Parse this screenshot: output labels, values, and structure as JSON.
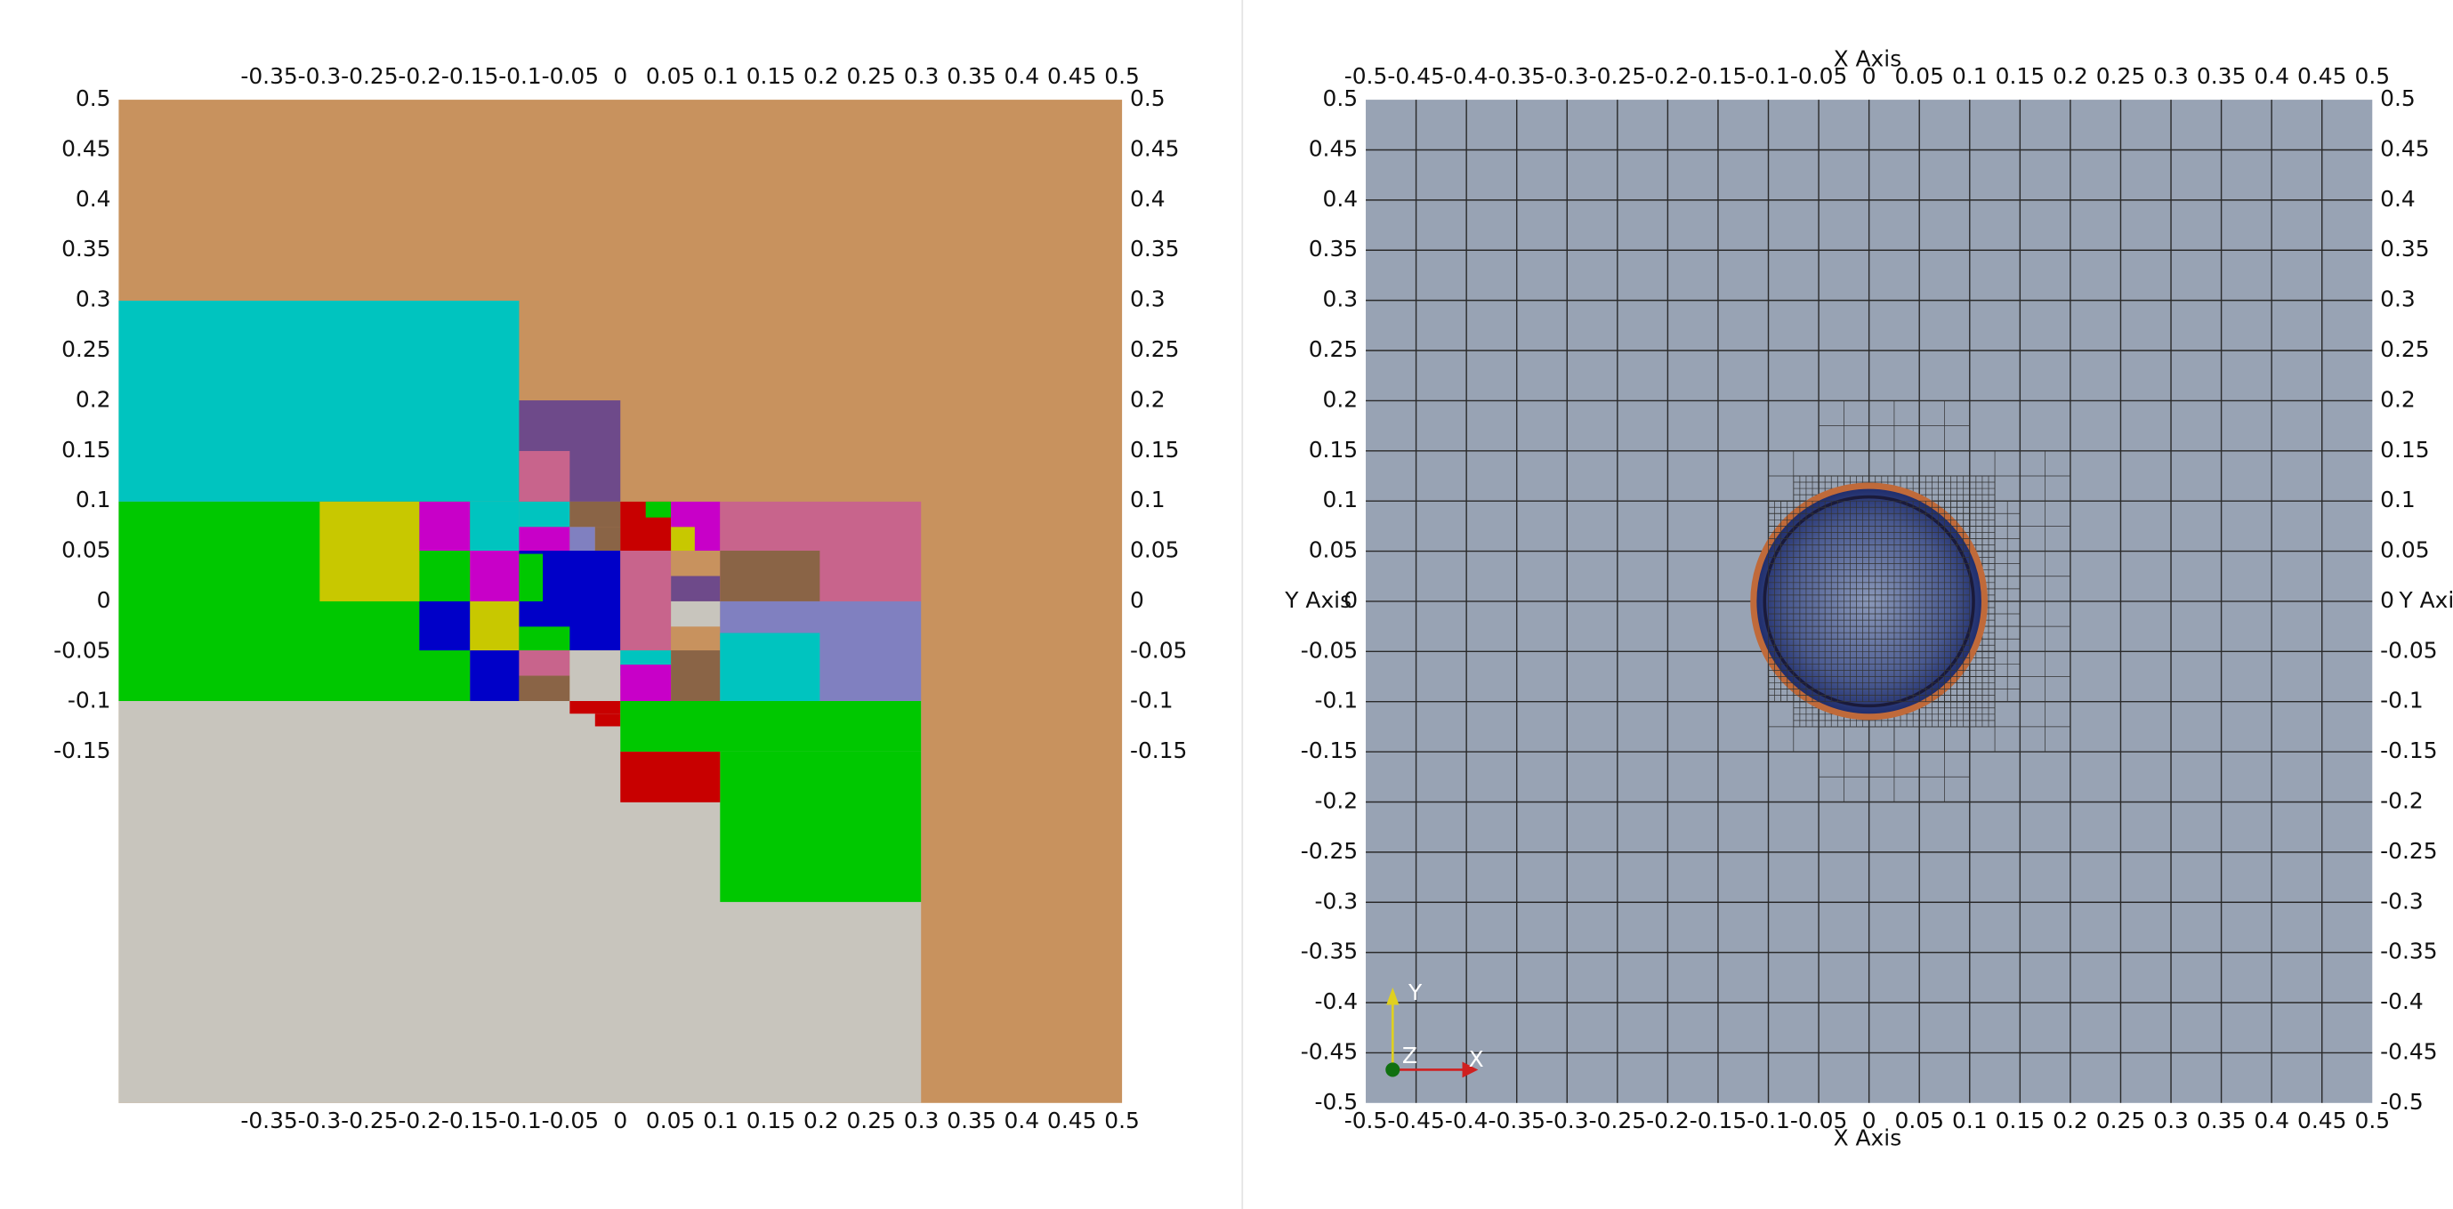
{
  "left_view": {
    "x_tick_labels": [
      -0.35,
      -0.3,
      -0.25,
      -0.2,
      -0.15,
      -0.1,
      -0.05,
      0,
      0.05,
      0.1,
      0.15,
      0.2,
      0.25,
      0.3,
      0.35,
      0.4,
      0.45,
      0.5
    ],
    "y_tick_labels": [
      0.5,
      0.45,
      0.4,
      0.35,
      0.3,
      0.25,
      0.2,
      0.15,
      0.1,
      0.05,
      0,
      -0.05,
      -0.1,
      -0.15
    ]
  },
  "right_view": {
    "x_axis_title": "X Axis",
    "y_axis_title": "Y Axis",
    "x_tick_labels": [
      -0.5,
      -0.45,
      -0.4,
      -0.35,
      -0.3,
      -0.25,
      -0.2,
      -0.15,
      -0.1,
      -0.05,
      0,
      0.05,
      0.1,
      0.15,
      0.2,
      0.25,
      0.3,
      0.35,
      0.4,
      0.45,
      0.5
    ],
    "y_tick_labels": [
      0.5,
      0.45,
      0.4,
      0.35,
      0.3,
      0.25,
      0.2,
      0.15,
      0.1,
      0.05,
      0,
      -0.05,
      -0.1,
      -0.15,
      -0.2,
      -0.25,
      -0.3,
      -0.35,
      -0.4,
      -0.45,
      -0.5
    ],
    "orientation_axes": {
      "x": "X",
      "y": "Y",
      "z": "Z"
    }
  }
}
